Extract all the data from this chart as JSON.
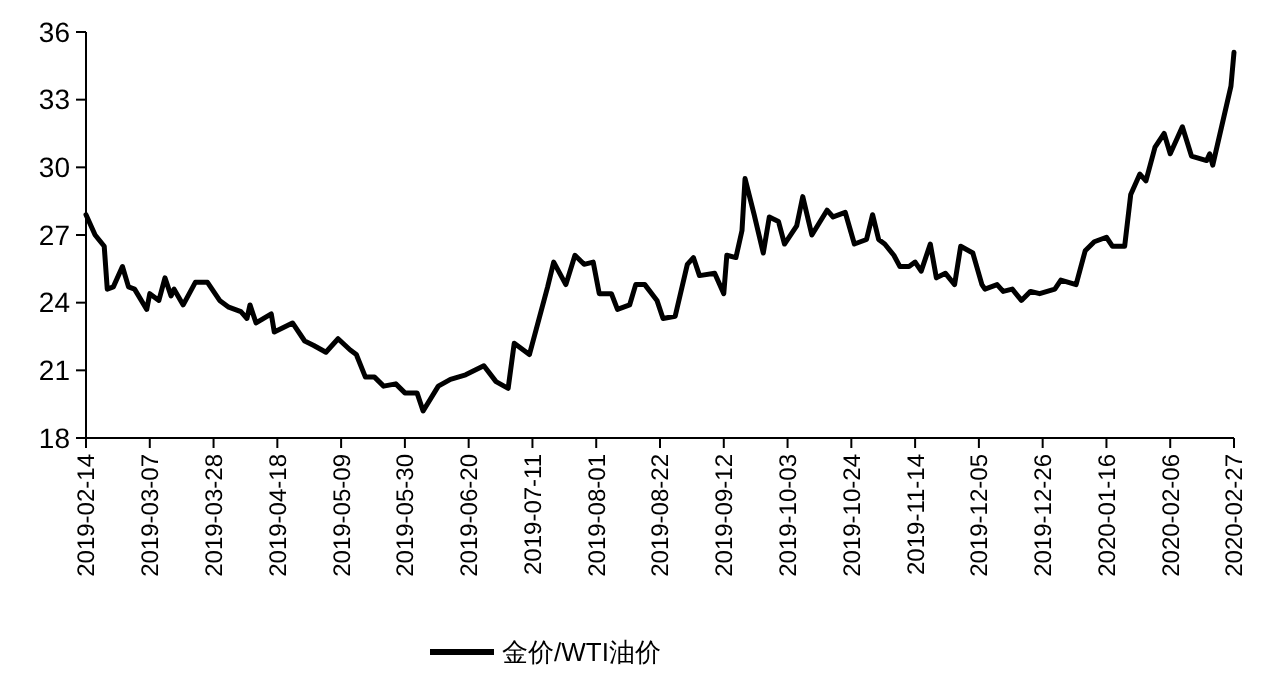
{
  "chart_data": {
    "type": "line",
    "xlim": [
      "2019-02-14",
      "2020-02-27"
    ],
    "xticks": [
      "2019-02-14",
      "2019-03-07",
      "2019-03-28",
      "2019-04-18",
      "2019-05-09",
      "2019-05-30",
      "2019-06-20",
      "2019-07-11",
      "2019-08-01",
      "2019-08-22",
      "2019-09-12",
      "2019-10-03",
      "2019-10-24",
      "2019-11-14",
      "2019-12-05",
      "2019-12-26",
      "2020-01-16",
      "2020-02-06",
      "2020-02-27"
    ],
    "ylim": [
      18,
      36
    ],
    "yticks": [
      18,
      21,
      24,
      27,
      30,
      33,
      36
    ],
    "grid": false,
    "legend": "bottom",
    "line_style": "solid",
    "marker": "none",
    "x": [
      "2019-02-14",
      "2019-02-17",
      "2019-02-20",
      "2019-02-21",
      "2019-02-23",
      "2019-02-26",
      "2019-02-28",
      "2019-03-02",
      "2019-03-06",
      "2019-03-07",
      "2019-03-10",
      "2019-03-12",
      "2019-03-14",
      "2019-03-15",
      "2019-03-18",
      "2019-03-20",
      "2019-03-22",
      "2019-03-26",
      "2019-03-30",
      "2019-04-02",
      "2019-04-06",
      "2019-04-08",
      "2019-04-09",
      "2019-04-11",
      "2019-04-16",
      "2019-04-17",
      "2019-04-20",
      "2019-04-23",
      "2019-04-27",
      "2019-04-30",
      "2019-05-04",
      "2019-05-08",
      "2019-05-12",
      "2019-05-14",
      "2019-05-17",
      "2019-05-20",
      "2019-05-23",
      "2019-05-27",
      "2019-05-30",
      "2019-06-03",
      "2019-06-05",
      "2019-06-10",
      "2019-06-14",
      "2019-06-19",
      "2019-06-25",
      "2019-06-29",
      "2019-07-03",
      "2019-07-05",
      "2019-07-10",
      "2019-07-16",
      "2019-07-18",
      "2019-07-22",
      "2019-07-25",
      "2019-07-28",
      "2019-07-31",
      "2019-08-02",
      "2019-08-06",
      "2019-08-08",
      "2019-08-12",
      "2019-08-14",
      "2019-08-17",
      "2019-08-21",
      "2019-08-23",
      "2019-08-27",
      "2019-08-31",
      "2019-09-02",
      "2019-09-04",
      "2019-09-09",
      "2019-09-12",
      "2019-09-13",
      "2019-09-16",
      "2019-09-18",
      "2019-09-19",
      "2019-09-22",
      "2019-09-25",
      "2019-09-27",
      "2019-09-30",
      "2019-10-02",
      "2019-10-06",
      "2019-10-08",
      "2019-10-11",
      "2019-10-16",
      "2019-10-18",
      "2019-10-22",
      "2019-10-25",
      "2019-10-29",
      "2019-10-31",
      "2019-11-02",
      "2019-11-04",
      "2019-11-07",
      "2019-11-09",
      "2019-11-12",
      "2019-11-14",
      "2019-11-16",
      "2019-11-19",
      "2019-11-21",
      "2019-11-24",
      "2019-11-27",
      "2019-11-29",
      "2019-12-03",
      "2019-12-06",
      "2019-12-07",
      "2019-12-11",
      "2019-12-13",
      "2019-12-16",
      "2019-12-19",
      "2019-12-22",
      "2019-12-25",
      "2019-12-30",
      "2020-01-01",
      "2020-01-06",
      "2020-01-09",
      "2020-01-12",
      "2020-01-16",
      "2020-01-18",
      "2020-01-22",
      "2020-01-24",
      "2020-01-27",
      "2020-01-29",
      "2020-02-01",
      "2020-02-04",
      "2020-02-06",
      "2020-02-10",
      "2020-02-13",
      "2020-02-18",
      "2020-02-19",
      "2020-02-20",
      "2020-02-26",
      "2020-02-27"
    ],
    "series": [
      {
        "name": "金价/WTI油价",
        "color": "#000000",
        "values": [
          27.9,
          27.0,
          26.5,
          24.6,
          24.7,
          25.6,
          24.7,
          24.6,
          23.7,
          24.4,
          24.1,
          25.1,
          24.3,
          24.6,
          23.9,
          24.4,
          24.9,
          24.9,
          24.1,
          23.8,
          23.6,
          23.3,
          23.9,
          23.1,
          23.5,
          22.7,
          22.9,
          23.1,
          22.3,
          22.1,
          21.8,
          22.4,
          21.9,
          21.7,
          20.7,
          20.7,
          20.3,
          20.4,
          20.0,
          20.0,
          19.2,
          20.3,
          20.6,
          20.8,
          21.2,
          20.5,
          20.2,
          22.2,
          21.7,
          24.7,
          25.8,
          24.8,
          26.1,
          25.7,
          25.8,
          24.4,
          24.4,
          23.7,
          23.9,
          24.8,
          24.8,
          24.1,
          23.3,
          23.4,
          25.7,
          26.0,
          25.2,
          25.3,
          24.4,
          26.1,
          26.0,
          27.2,
          29.5,
          27.9,
          26.2,
          27.8,
          27.6,
          26.6,
          27.4,
          28.7,
          27.0,
          28.1,
          27.8,
          28.0,
          26.6,
          26.8,
          27.9,
          26.8,
          26.6,
          26.1,
          25.6,
          25.6,
          25.8,
          25.4,
          26.6,
          25.1,
          25.3,
          24.8,
          26.5,
          26.2,
          24.8,
          24.6,
          24.8,
          24.5,
          24.6,
          24.1,
          24.5,
          24.4,
          24.6,
          25.0,
          24.8,
          26.3,
          26.7,
          26.9,
          26.5,
          26.5,
          28.8,
          29.7,
          29.4,
          30.9,
          31.5,
          30.6,
          31.8,
          30.5,
          30.3,
          30.6,
          30.1,
          33.6,
          35.1
        ]
      }
    ]
  }
}
